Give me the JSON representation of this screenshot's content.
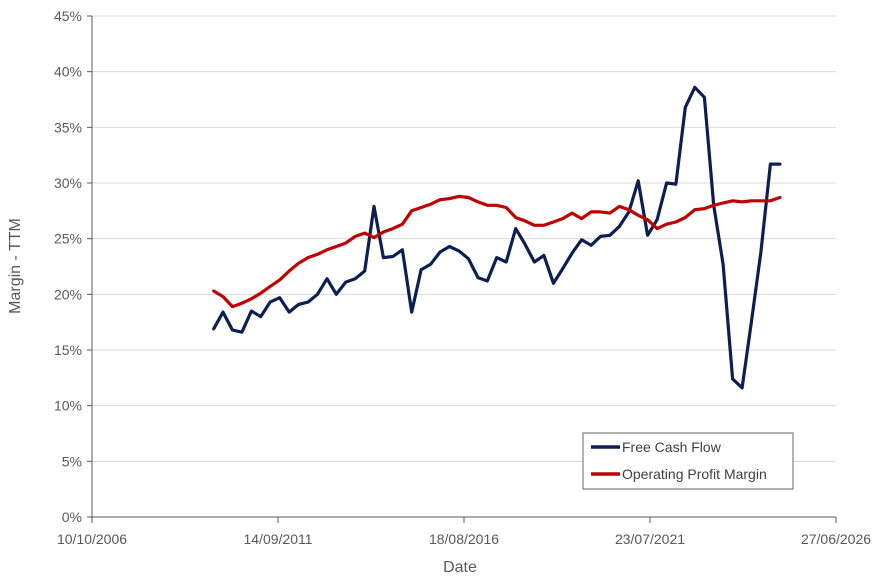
{
  "chart_data": {
    "type": "line",
    "title": "",
    "xlabel": "Date",
    "ylabel": "Margin - TTM",
    "x_ticks": [
      "10/10/2006",
      "14/09/2011",
      "18/08/2016",
      "23/07/2021",
      "27/06/2026"
    ],
    "y_ticks": [
      "0%",
      "5%",
      "10%",
      "15%",
      "20%",
      "25%",
      "30%",
      "35%",
      "40%",
      "45%"
    ],
    "xlim": [
      "2006-10-10",
      "2026-06-27"
    ],
    "ylim": [
      0,
      45
    ],
    "grid": "horizontal",
    "legend_position": "bottom-right",
    "series": [
      {
        "name": "Free Cash Flow",
        "color": "#0d1e52",
        "points": [
          [
            "2009-12-31",
            16.9
          ],
          [
            "2010-03-31",
            18.4
          ],
          [
            "2010-06-30",
            16.8
          ],
          [
            "2010-09-30",
            16.6
          ],
          [
            "2010-12-31",
            18.5
          ],
          [
            "2011-03-31",
            18.0
          ],
          [
            "2011-06-30",
            19.3
          ],
          [
            "2011-09-30",
            19.7
          ],
          [
            "2011-12-31",
            18.4
          ],
          [
            "2012-03-31",
            19.1
          ],
          [
            "2012-06-30",
            19.3
          ],
          [
            "2012-09-30",
            20.0
          ],
          [
            "2012-12-31",
            21.4
          ],
          [
            "2013-03-31",
            20.0
          ],
          [
            "2013-06-30",
            21.1
          ],
          [
            "2013-09-30",
            21.4
          ],
          [
            "2013-12-31",
            22.1
          ],
          [
            "2014-03-31",
            27.9
          ],
          [
            "2014-06-30",
            23.3
          ],
          [
            "2014-09-30",
            23.4
          ],
          [
            "2014-12-31",
            24.0
          ],
          [
            "2015-03-31",
            18.4
          ],
          [
            "2015-06-30",
            22.2
          ],
          [
            "2015-09-30",
            22.7
          ],
          [
            "2015-12-31",
            23.8
          ],
          [
            "2016-03-31",
            24.3
          ],
          [
            "2016-06-30",
            23.9
          ],
          [
            "2016-09-30",
            23.2
          ],
          [
            "2016-12-31",
            21.5
          ],
          [
            "2017-03-31",
            21.2
          ],
          [
            "2017-06-30",
            23.3
          ],
          [
            "2017-09-30",
            22.9
          ],
          [
            "2017-12-31",
            25.9
          ],
          [
            "2018-03-31",
            24.5
          ],
          [
            "2018-06-30",
            22.9
          ],
          [
            "2018-09-30",
            23.5
          ],
          [
            "2018-12-31",
            21.0
          ],
          [
            "2019-03-31",
            22.3
          ],
          [
            "2019-06-30",
            23.7
          ],
          [
            "2019-09-30",
            24.9
          ],
          [
            "2019-12-31",
            24.4
          ],
          [
            "2020-03-31",
            25.2
          ],
          [
            "2020-06-30",
            25.3
          ],
          [
            "2020-09-30",
            26.1
          ],
          [
            "2020-12-31",
            27.4
          ],
          [
            "2021-03-31",
            30.2
          ],
          [
            "2021-06-30",
            25.3
          ],
          [
            "2021-09-30",
            26.7
          ],
          [
            "2021-12-31",
            30.0
          ],
          [
            "2022-03-31",
            29.9
          ],
          [
            "2022-06-30",
            36.8
          ],
          [
            "2022-09-30",
            38.6
          ],
          [
            "2022-12-31",
            37.7
          ],
          [
            "2023-03-31",
            28.0
          ],
          [
            "2023-06-30",
            22.7
          ],
          [
            "2023-09-30",
            12.4
          ],
          [
            "2023-12-31",
            11.6
          ],
          [
            "2024-03-31",
            17.6
          ],
          [
            "2024-06-30",
            23.8
          ],
          [
            "2024-09-30",
            31.7
          ],
          [
            "2024-12-31",
            31.7
          ]
        ]
      },
      {
        "name": "Operating Profit Margin",
        "color": "#c00000",
        "points": [
          [
            "2009-12-31",
            20.3
          ],
          [
            "2010-03-31",
            19.8
          ],
          [
            "2010-06-30",
            18.9
          ],
          [
            "2010-09-30",
            19.2
          ],
          [
            "2010-12-31",
            19.6
          ],
          [
            "2011-03-31",
            20.1
          ],
          [
            "2011-06-30",
            20.7
          ],
          [
            "2011-09-30",
            21.3
          ],
          [
            "2011-12-31",
            22.1
          ],
          [
            "2012-03-31",
            22.8
          ],
          [
            "2012-06-30",
            23.3
          ],
          [
            "2012-09-30",
            23.6
          ],
          [
            "2012-12-31",
            24.0
          ],
          [
            "2013-03-31",
            24.3
          ],
          [
            "2013-06-30",
            24.6
          ],
          [
            "2013-09-30",
            25.2
          ],
          [
            "2013-12-31",
            25.5
          ],
          [
            "2014-03-31",
            25.1
          ],
          [
            "2014-06-30",
            25.6
          ],
          [
            "2014-09-30",
            25.9
          ],
          [
            "2014-12-31",
            26.3
          ],
          [
            "2015-03-31",
            27.5
          ],
          [
            "2015-06-30",
            27.8
          ],
          [
            "2015-09-30",
            28.1
          ],
          [
            "2015-12-31",
            28.5
          ],
          [
            "2016-03-31",
            28.6
          ],
          [
            "2016-06-30",
            28.8
          ],
          [
            "2016-09-30",
            28.7
          ],
          [
            "2016-12-31",
            28.3
          ],
          [
            "2017-03-31",
            28.0
          ],
          [
            "2017-06-30",
            28.0
          ],
          [
            "2017-09-30",
            27.8
          ],
          [
            "2017-12-31",
            26.9
          ],
          [
            "2018-03-31",
            26.6
          ],
          [
            "2018-06-30",
            26.2
          ],
          [
            "2018-09-30",
            26.2
          ],
          [
            "2018-12-31",
            26.5
          ],
          [
            "2019-03-31",
            26.8
          ],
          [
            "2019-06-30",
            27.3
          ],
          [
            "2019-09-30",
            26.8
          ],
          [
            "2019-12-31",
            27.4
          ],
          [
            "2020-03-31",
            27.4
          ],
          [
            "2020-06-30",
            27.3
          ],
          [
            "2020-09-30",
            27.9
          ],
          [
            "2020-12-31",
            27.6
          ],
          [
            "2021-03-31",
            27.1
          ],
          [
            "2021-06-30",
            26.7
          ],
          [
            "2021-09-30",
            25.9
          ],
          [
            "2021-12-31",
            26.3
          ],
          [
            "2022-03-31",
            26.5
          ],
          [
            "2022-06-30",
            26.9
          ],
          [
            "2022-09-30",
            27.6
          ],
          [
            "2022-12-31",
            27.7
          ],
          [
            "2023-03-31",
            28.0
          ],
          [
            "2023-06-30",
            28.2
          ],
          [
            "2023-09-30",
            28.4
          ],
          [
            "2023-12-31",
            28.3
          ],
          [
            "2024-03-31",
            28.4
          ],
          [
            "2024-06-30",
            28.4
          ],
          [
            "2024-09-30",
            28.4
          ],
          [
            "2024-12-31",
            28.7
          ]
        ]
      }
    ]
  }
}
